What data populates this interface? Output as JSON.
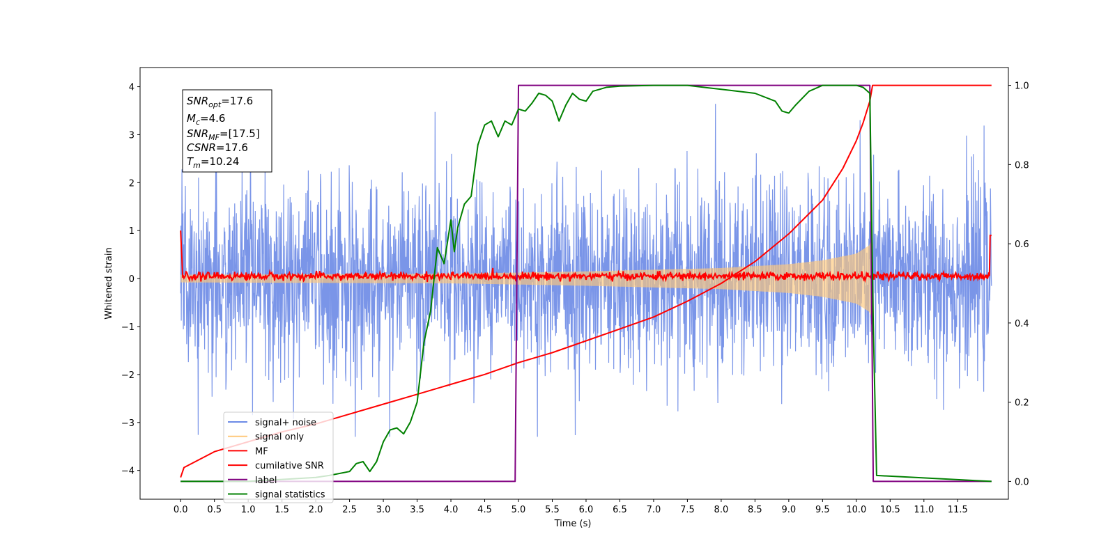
{
  "chart_data": {
    "type": "line",
    "xlabel": "Time (s)",
    "ylabel": "Whitened strain",
    "xlim": [
      -0.6,
      12.25
    ],
    "ylim": [
      -4.6,
      4.4
    ],
    "y2lim": [
      -0.045,
      1.045
    ],
    "x_ticks": [
      "0.0",
      "0.5",
      "1.0",
      "1.5",
      "2.0",
      "2.5",
      "3.0",
      "3.5",
      "4.0",
      "4.5",
      "5.0",
      "5.5",
      "6.0",
      "6.5",
      "7.0",
      "7.5",
      "8.0",
      "8.5",
      "9.0",
      "9.5",
      "10.0",
      "10.5",
      "11.0",
      "11.5"
    ],
    "y_ticks": [
      "−4",
      "−3",
      "−2",
      "−1",
      "0",
      "1",
      "2",
      "3",
      "4"
    ],
    "y2_ticks": [
      "0.0",
      "0.2",
      "0.4",
      "0.6",
      "0.8",
      "1.0"
    ],
    "legend_location": "lower-left",
    "annotation": {
      "snr_opt": {
        "base": "SNR",
        "sub": "opt",
        "value": "=17.6"
      },
      "mc": {
        "base": "M",
        "sub": "c",
        "value": "=4.6"
      },
      "snr_mf": {
        "base": "SNR",
        "sub": "MF",
        "value": "=[17.5]"
      },
      "csnr": {
        "base": "CSNR",
        "value": "=17.6"
      },
      "tm": {
        "base": "T",
        "sub": "m",
        "value": "=10.24"
      }
    },
    "series": [
      {
        "name": "signal+ noise",
        "color": "#6b8ae6",
        "axis": "left",
        "x_range": [
          0,
          12.0
        ],
        "noise_std": 1.0,
        "data_summary": "white noise, approx range -3.3 to 3.9"
      },
      {
        "name": "signal only",
        "color": "#ffc87a",
        "axis": "left",
        "chirp_envelope": {
          "x": [
            0,
            2,
            4,
            6,
            8,
            9,
            9.5,
            10,
            10.2,
            10.24
          ],
          "amp": [
            0.08,
            0.09,
            0.1,
            0.15,
            0.22,
            0.3,
            0.38,
            0.52,
            0.7,
            0.85
          ]
        }
      },
      {
        "name": "MF",
        "color": "#ff0000",
        "axis": "left",
        "x_range": [
          0,
          12.0
        ],
        "level": 0.05,
        "noise_std": 0.04
      },
      {
        "name": "cumilative SNR",
        "color": "#ff0000",
        "axis": "right",
        "x": [
          0,
          0.05,
          0.5,
          1,
          1.5,
          2,
          2.5,
          3,
          3.5,
          4,
          4.5,
          5,
          5.5,
          6,
          6.5,
          7,
          7.5,
          8,
          8.5,
          9,
          9.5,
          9.8,
          10,
          10.1,
          10.2,
          10.24,
          12.0
        ],
        "y": [
          0.01,
          0.035,
          0.075,
          0.1,
          0.125,
          0.145,
          0.17,
          0.195,
          0.22,
          0.245,
          0.27,
          0.3,
          0.325,
          0.355,
          0.385,
          0.415,
          0.455,
          0.5,
          0.555,
          0.625,
          0.71,
          0.79,
          0.86,
          0.905,
          0.96,
          1.0,
          1.0
        ]
      },
      {
        "name": "label",
        "color": "#800080",
        "axis": "right",
        "x": [
          0,
          4.95,
          5.0,
          10.2,
          10.25,
          12.0
        ],
        "y": [
          0,
          0,
          1,
          1,
          0,
          0
        ]
      },
      {
        "name": "signal statistics",
        "color": "#008000",
        "axis": "right",
        "x": [
          0,
          0.5,
          1,
          1.5,
          2,
          2.2,
          2.5,
          2.6,
          2.7,
          2.8,
          2.9,
          3.0,
          3.1,
          3.2,
          3.3,
          3.4,
          3.5,
          3.6,
          3.7,
          3.8,
          3.9,
          4.0,
          4.05,
          4.1,
          4.2,
          4.3,
          4.4,
          4.5,
          4.6,
          4.7,
          4.8,
          4.9,
          5.0,
          5.1,
          5.2,
          5.3,
          5.4,
          5.5,
          5.6,
          5.7,
          5.8,
          5.9,
          6.0,
          6.1,
          6.2,
          6.3,
          6.5,
          7.0,
          7.5,
          8.0,
          8.5,
          8.8,
          8.9,
          9.0,
          9.1,
          9.3,
          9.5,
          10.0,
          10.1,
          10.2,
          10.25,
          10.3,
          12.0
        ],
        "y": [
          0.0,
          0.0,
          0.0,
          0.005,
          0.01,
          0.015,
          0.025,
          0.045,
          0.05,
          0.025,
          0.05,
          0.1,
          0.13,
          0.135,
          0.12,
          0.15,
          0.2,
          0.35,
          0.43,
          0.59,
          0.55,
          0.66,
          0.58,
          0.64,
          0.7,
          0.72,
          0.85,
          0.9,
          0.91,
          0.87,
          0.91,
          0.9,
          0.94,
          0.935,
          0.955,
          0.98,
          0.975,
          0.96,
          0.91,
          0.95,
          0.98,
          0.965,
          0.96,
          0.985,
          0.99,
          0.995,
          0.998,
          1.0,
          1.0,
          0.99,
          0.98,
          0.96,
          0.935,
          0.93,
          0.95,
          0.985,
          1.0,
          1.0,
          0.995,
          0.98,
          0.4,
          0.015,
          0.0
        ]
      }
    ]
  }
}
